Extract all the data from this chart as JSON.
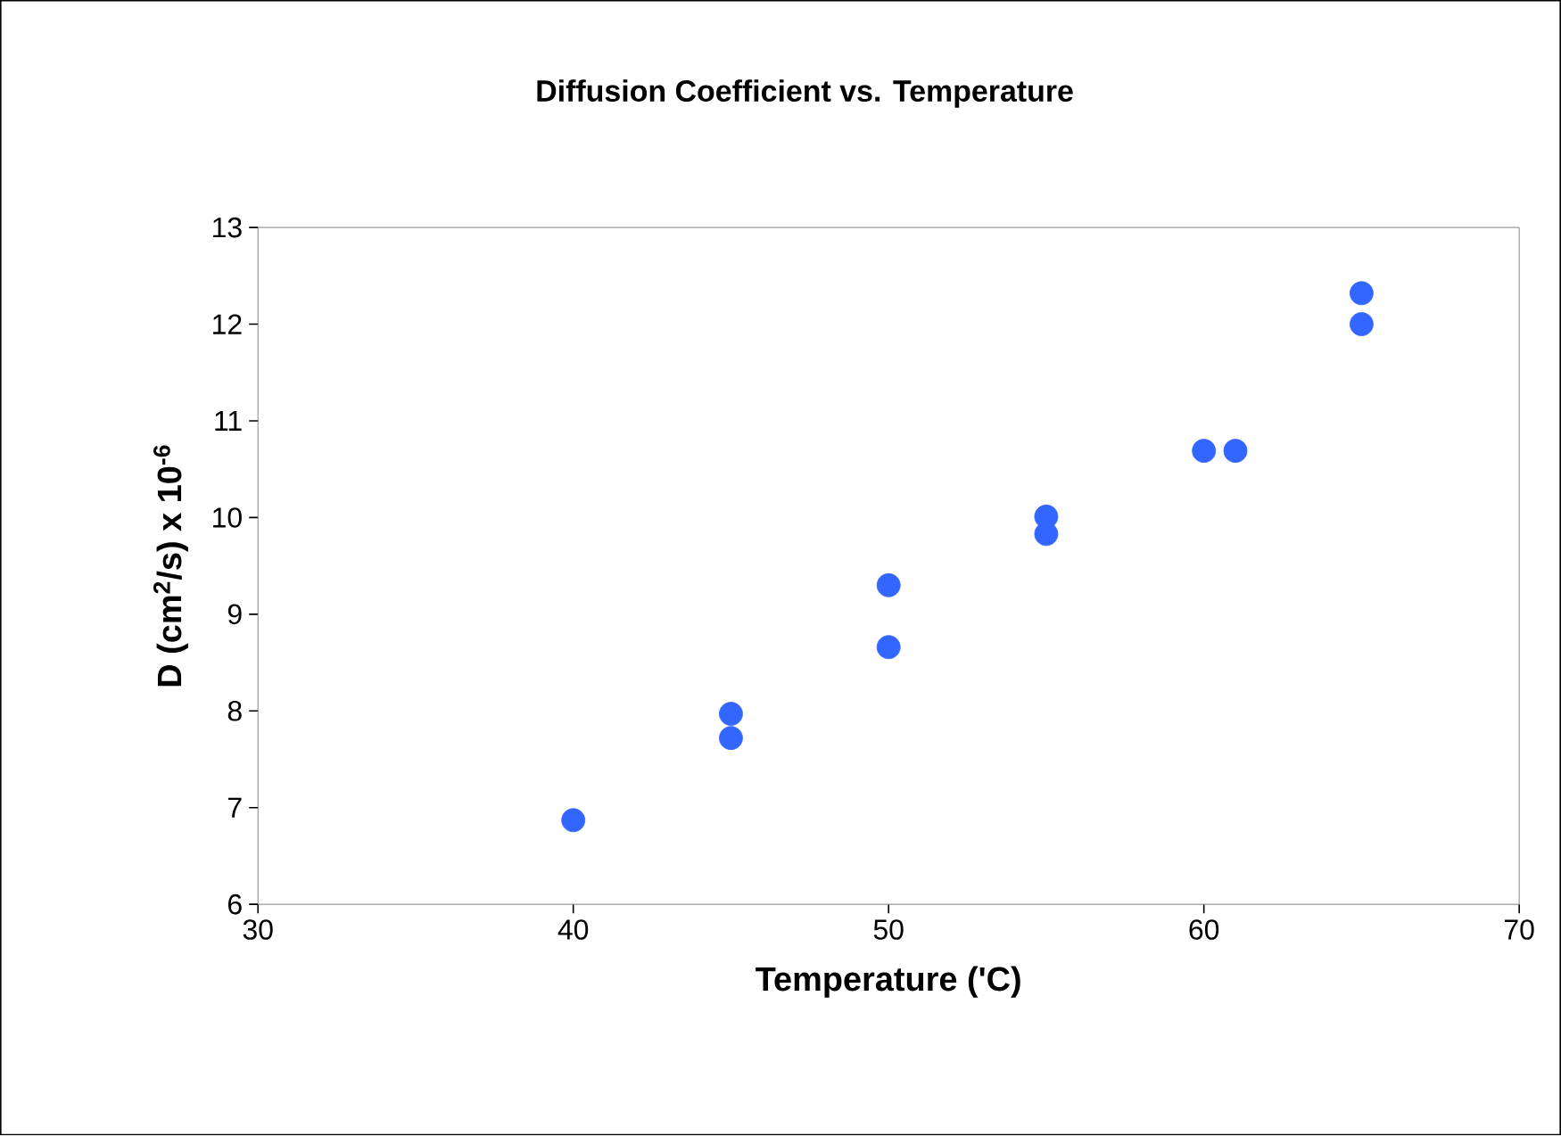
{
  "chart_data": {
    "type": "scatter",
    "title": "Diffusion Coefficient vs. Temperature",
    "xlabel": "Temperature ('C)",
    "ylabel": "D (cm$^{2}$/s) x 10$^{-6}$",
    "x": [
      40,
      45,
      45,
      50,
      50,
      55,
      55,
      60,
      61,
      65,
      65
    ],
    "values": [
      6.87,
      7.97,
      7.72,
      9.3,
      8.66,
      10.01,
      9.83,
      10.69,
      10.69,
      12.32,
      12.0
    ],
    "color": "#3366ff",
    "marker": "circle",
    "grid": false,
    "legend": false,
    "xlim": [
      30,
      70
    ],
    "xticks": [
      30,
      40,
      50,
      60,
      70
    ],
    "ylim": [
      6,
      13
    ],
    "yticks": [
      6,
      7,
      8,
      9,
      10,
      11,
      12,
      13
    ]
  }
}
